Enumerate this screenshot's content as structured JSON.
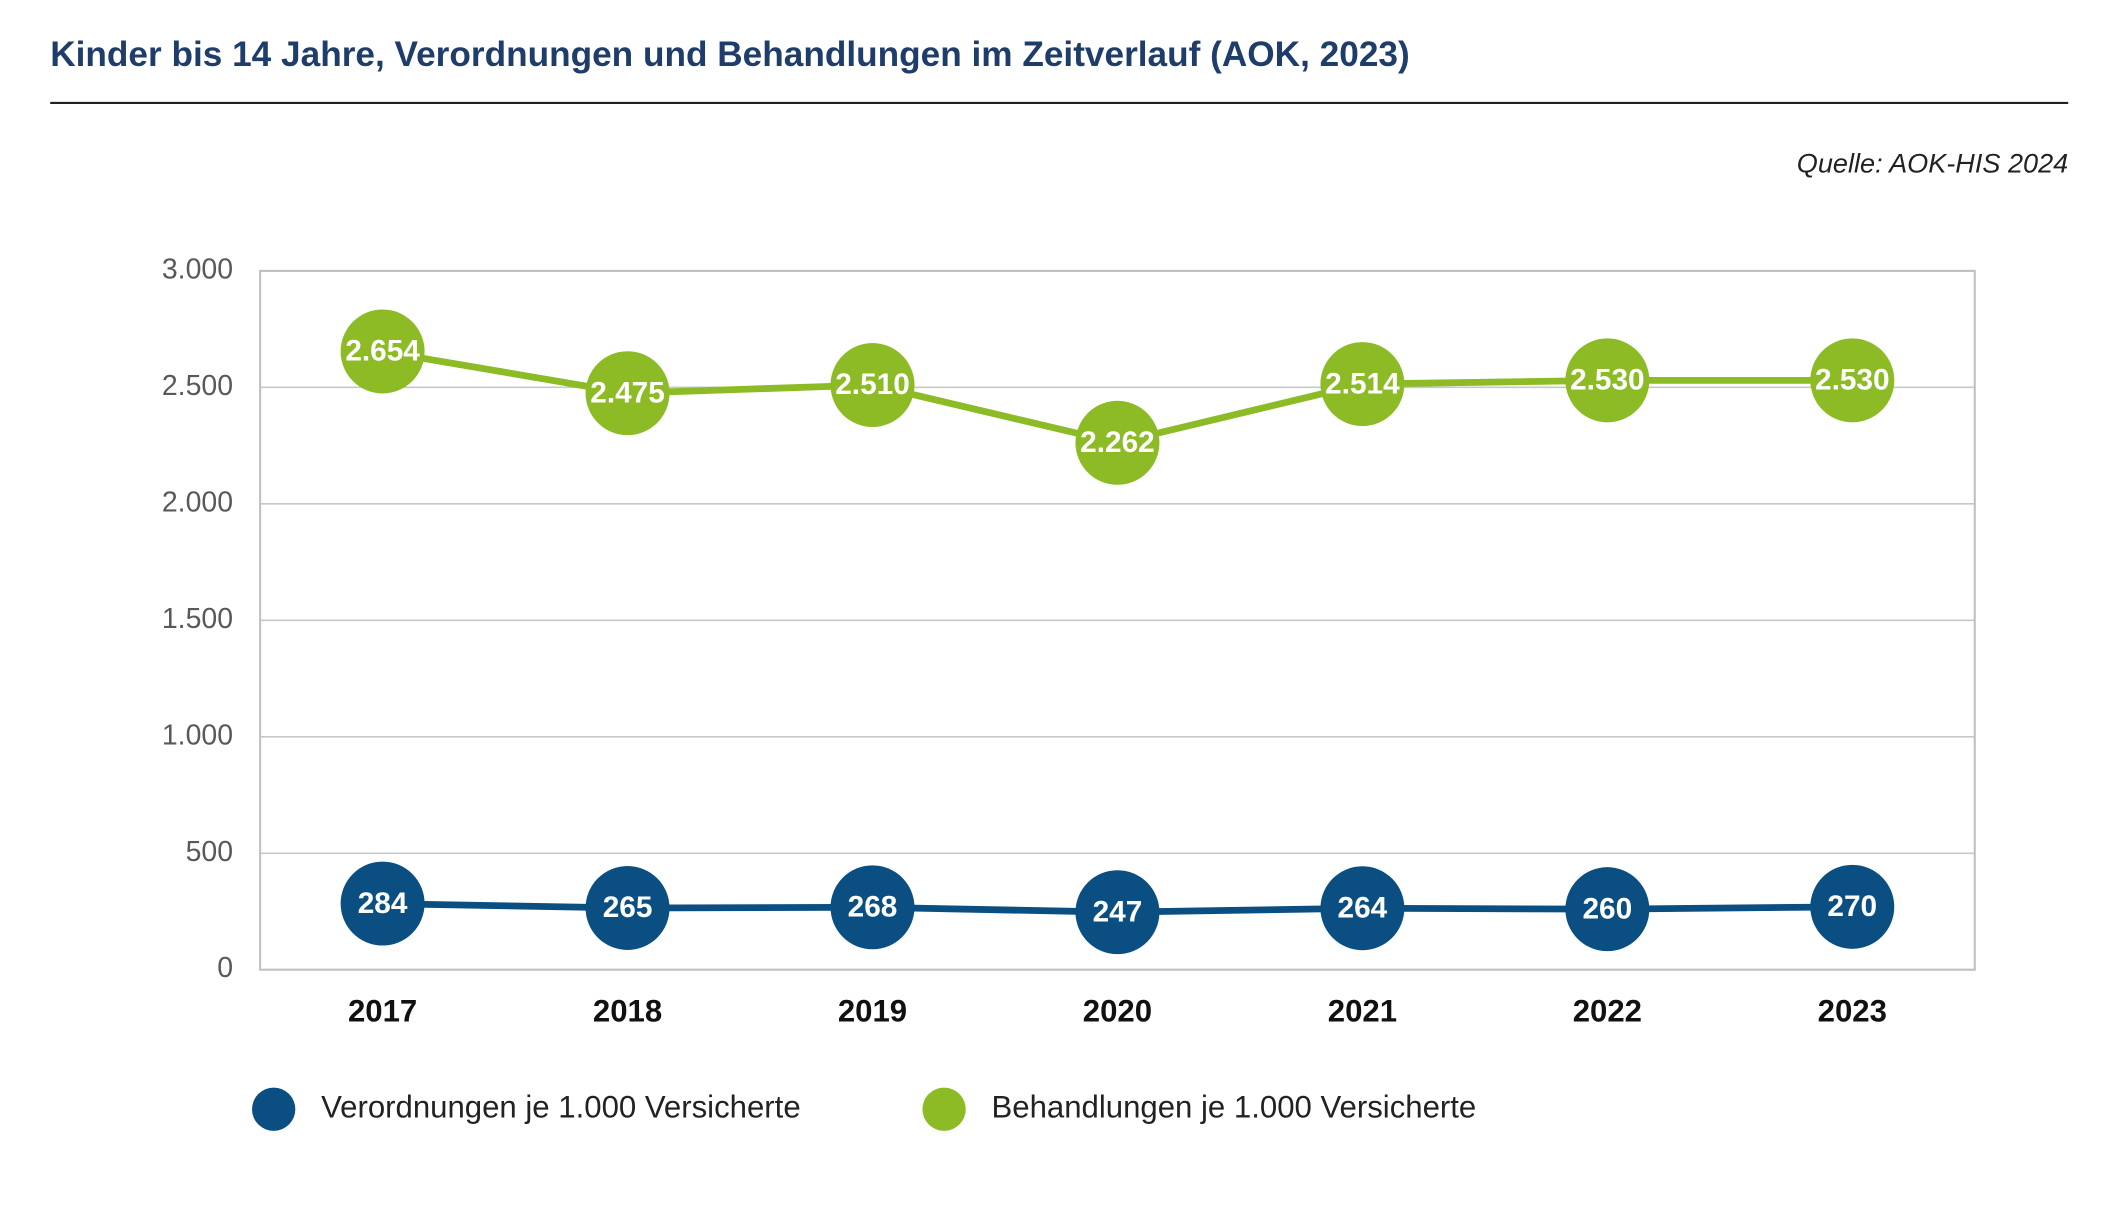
{
  "chart_data": {
    "type": "line",
    "title": "Kinder bis 14 Jahre, Verordnungen und Behandlungen im Zeitverlauf (AOK, 2023)",
    "source": "Quelle: AOK-HIS 2024",
    "categories": [
      "2017",
      "2018",
      "2019",
      "2020",
      "2021",
      "2022",
      "2023"
    ],
    "series": [
      {
        "name": "Verordnungen je 1.000 Versicherte",
        "color": "#0b4f82",
        "values": [
          284,
          265,
          268,
          247,
          264,
          260,
          270
        ]
      },
      {
        "name": "Behandlungen je 1.000 Versicherte",
        "color": "#8cbb26",
        "values": [
          2654,
          2475,
          2510,
          2262,
          2514,
          2530,
          2530
        ],
        "value_labels": [
          "2.654",
          "2.475",
          "2.510",
          "2.262",
          "2.514",
          "2.530",
          "2.530"
        ]
      }
    ],
    "ylim": [
      0,
      3000
    ],
    "yticks": [
      0,
      500,
      {
        "value": 1000,
        "label": "1.000"
      },
      {
        "value": 1500,
        "label": "1.500"
      },
      {
        "value": 2000,
        "label": "2.000"
      },
      {
        "value": 2500,
        "label": "2.500"
      },
      {
        "value": 3000,
        "label": "3.000"
      }
    ],
    "grid": true,
    "legend": "bottom"
  }
}
